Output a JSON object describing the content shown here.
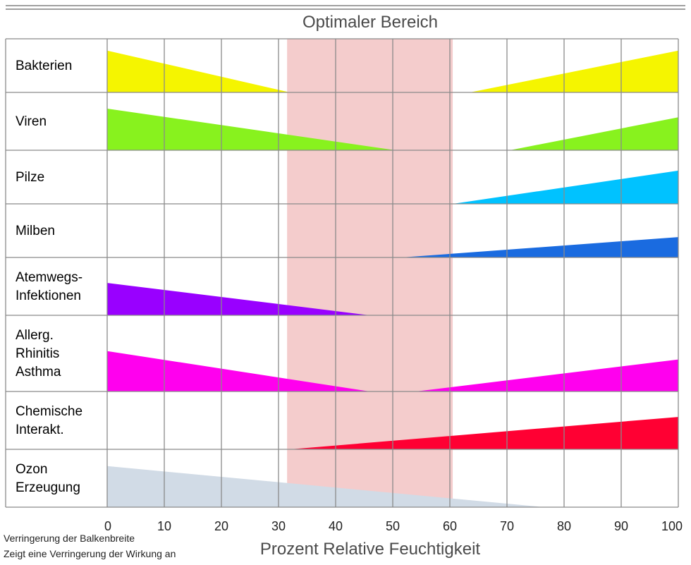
{
  "chart_data": {
    "type": "bar",
    "title": "Optimaler Bereich",
    "xlabel": "Prozent Relative Feuchtigkeit",
    "xlim": [
      0,
      100
    ],
    "xticks": [
      0,
      10,
      20,
      30,
      40,
      50,
      60,
      70,
      80,
      90,
      100
    ],
    "optimal_range": {
      "from": 31.5,
      "to": 60.5,
      "color": "#f4cccc"
    },
    "grid": true,
    "notes": [
      "Verringerung der Balkenbreite",
      "Zeigt eine Verringerung der Wirkung an"
    ],
    "rows": [
      {
        "label": [
          "Bakterien"
        ],
        "color": "#f5f500",
        "wedges": [
          {
            "x_start": 0,
            "x_end": 32,
            "max_at": "start",
            "max_height": 0.78
          },
          {
            "x_start": 63.5,
            "x_end": 100,
            "max_at": "end",
            "max_height": 0.78
          }
        ]
      },
      {
        "label": [
          "Viren"
        ],
        "color": "#88f21e",
        "wedges": [
          {
            "x_start": 0,
            "x_end": 50.5,
            "max_at": "start",
            "max_height": 0.72
          },
          {
            "x_start": 70.5,
            "x_end": 100,
            "max_at": "end",
            "max_height": 0.57
          }
        ]
      },
      {
        "label": [
          "Pilze"
        ],
        "color": "#00c2ff",
        "wedges": [
          {
            "x_start": 60.5,
            "x_end": 100,
            "max_at": "end",
            "max_height": 0.62
          }
        ]
      },
      {
        "label": [
          "Milben"
        ],
        "color": "#1a6be0",
        "wedges": [
          {
            "x_start": 51.5,
            "x_end": 100,
            "max_at": "end",
            "max_height": 0.38
          }
        ]
      },
      {
        "label": [
          "Atemwegs-",
          "Infektionen"
        ],
        "color": "#9900ff",
        "wedges": [
          {
            "x_start": 0,
            "x_end": 46,
            "max_at": "start",
            "max_height": 0.56
          }
        ]
      },
      {
        "label": [
          "Allerg.",
          "Rhinitis",
          "Asthma"
        ],
        "color": "#ff00ee",
        "wedges": [
          {
            "x_start": 0,
            "x_end": 46,
            "max_at": "start",
            "max_height": 0.53
          },
          {
            "x_start": 54,
            "x_end": 100,
            "max_at": "end",
            "max_height": 0.42
          }
        ]
      },
      {
        "label": [
          "Chemische",
          "Interakt."
        ],
        "color": "#ff0033",
        "wedges": [
          {
            "x_start": 32,
            "x_end": 100,
            "max_at": "end",
            "max_height": 0.56
          }
        ]
      },
      {
        "label": [
          "Ozon",
          "Erzeugung"
        ],
        "color": "#d1dbe6",
        "wedges": [
          {
            "x_start": 0,
            "x_end": 76.5,
            "max_at": "start",
            "max_height": 0.71
          }
        ]
      }
    ]
  }
}
